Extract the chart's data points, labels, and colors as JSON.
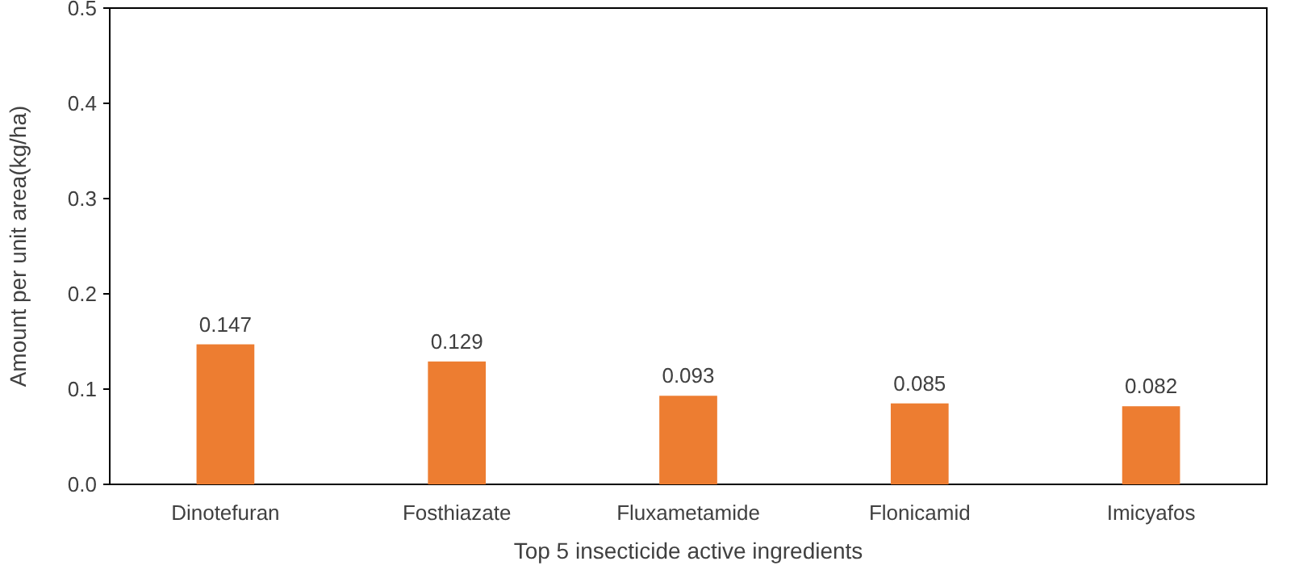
{
  "chart_data": {
    "type": "bar",
    "xlabel": "Top 5 insecticide active ingredients",
    "ylabel": "Amount per unit area(kg/ha)",
    "categories": [
      "Dinotefuran",
      "Fosthiazate",
      "Fluxametamide",
      "Flonicamid",
      "Imicyafos"
    ],
    "values": [
      0.147,
      0.129,
      0.093,
      0.085,
      0.082
    ],
    "color": "#ed7d31",
    "ylim": [
      0,
      0.5
    ],
    "yticks": [
      {
        "value": 0,
        "label": "0.0"
      },
      0.1,
      0.2,
      0.3,
      0.4,
      0.5
    ],
    "grid": false,
    "data_labels": true
  }
}
